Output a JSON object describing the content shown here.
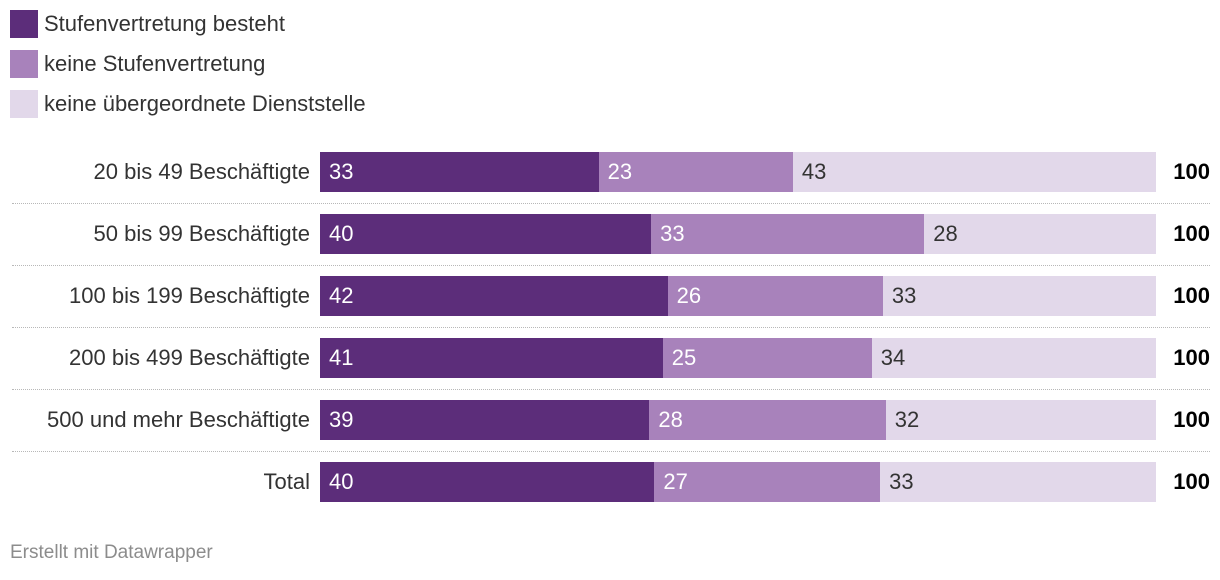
{
  "chart_data": {
    "type": "bar",
    "orientation": "horizontal",
    "stacked": true,
    "categories": [
      "20 bis 49 Beschäftigte",
      "50 bis 99 Beschäftigte",
      "100 bis 199 Beschäftigte",
      "200 bis 499 Beschäftigte",
      "500 und mehr Beschäftigte",
      "Total"
    ],
    "series": [
      {
        "name": "Stufenvertretung besteht",
        "color": "#5c2d7a",
        "label_color": "#ffffff",
        "values": [
          33,
          40,
          42,
          41,
          39,
          40
        ]
      },
      {
        "name": "keine Stufenvertretung",
        "color": "#a882bb",
        "label_color": "#ffffff",
        "values": [
          23,
          33,
          26,
          25,
          28,
          27
        ]
      },
      {
        "name": "keine übergeordnete Dienststelle",
        "color": "#e2d8ea",
        "label_color": "#333333",
        "values": [
          43,
          28,
          33,
          34,
          32,
          33
        ]
      }
    ],
    "totals": [
      "100",
      "100",
      "100",
      "100",
      "100",
      "100"
    ],
    "legend_position": "top-left",
    "xlim": [
      0,
      100
    ]
  },
  "footer": {
    "credit": "Erstellt mit Datawrapper"
  }
}
